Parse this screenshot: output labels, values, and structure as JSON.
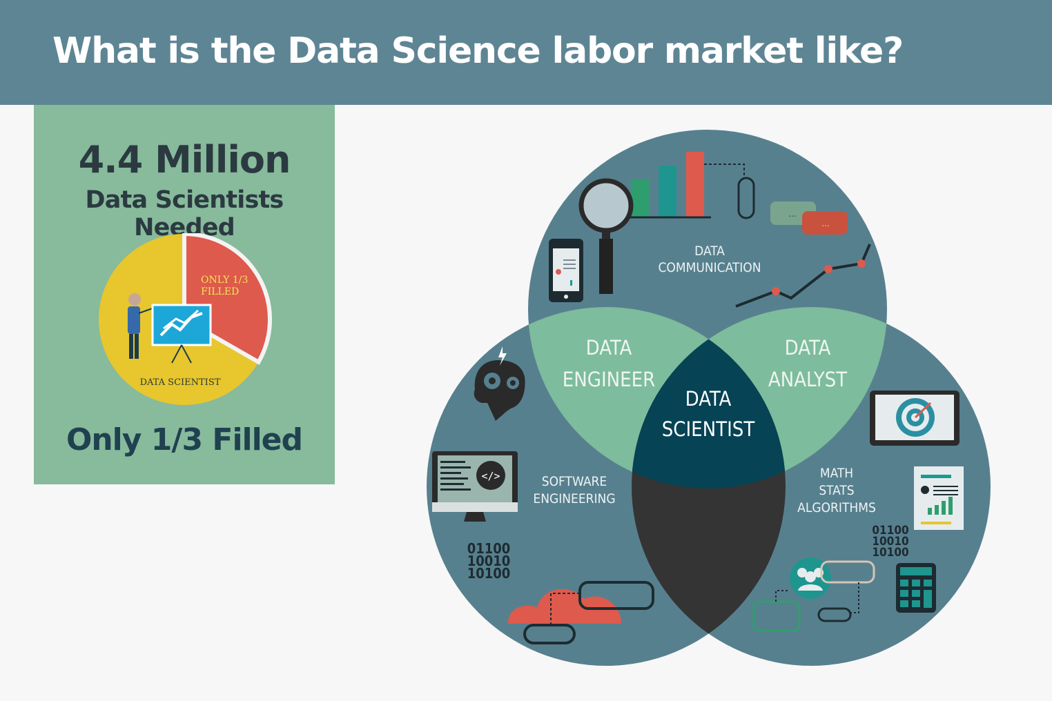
{
  "header": {
    "title": "What is the Data Science labor market like?"
  },
  "stat_card": {
    "number": "4.4 Million",
    "subtitle": "Data Scientists Needed",
    "footer": "Only 1/3 Filled",
    "pie_label_slice": [
      "ONLY 1/3",
      "FILLED"
    ],
    "pie_label_main": "DATA SCIENTIST",
    "filled_fraction": 0.333
  },
  "venn": {
    "top": [
      "DATA",
      "COMMUNICATION"
    ],
    "left": [
      "SOFTWARE",
      "ENGINEERING"
    ],
    "right": [
      "MATH",
      "STATS",
      "ALGORITHMS"
    ],
    "top_left": [
      "DATA",
      "ENGINEER"
    ],
    "top_right": [
      "DATA",
      "ANALYST"
    ],
    "center": [
      "DATA",
      "SCIENTIST"
    ],
    "binary_left": [
      "01100",
      "10010",
      "10100"
    ],
    "binary_right": [
      "01100",
      "10010",
      "10100"
    ],
    "code_icon": "</>",
    "chat_dots": "..."
  },
  "colors": {
    "header": "#5e8594",
    "card": "#88ba9c",
    "circle": "#57808f",
    "overlap": "#7dbc9c",
    "center": "#064354",
    "bottom_overlap": "#343434"
  },
  "icons": [
    "magnifier-icon",
    "bar-chart-icon",
    "phone-icon",
    "chat-icon",
    "line-chart-icon",
    "brain-gears-icon",
    "monitor-code-icon",
    "cloud-icon",
    "target-icon",
    "report-icon",
    "calculator-icon",
    "team-icon"
  ]
}
